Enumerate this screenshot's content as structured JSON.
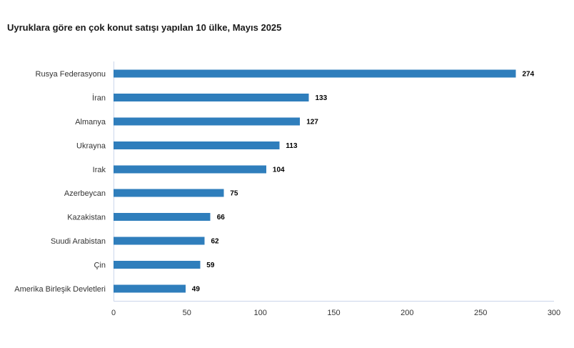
{
  "chart_data": {
    "type": "bar",
    "horizontal": true,
    "title": "Uyruklara göre en çok konut satışı yapılan 10 ülke, Mayıs 2025",
    "categories": [
      "Rusya Federasyonu",
      "İran",
      "Almanya",
      "Ukrayna",
      "Irak",
      "Azerbeycan",
      "Kazakistan",
      "Suudi Arabistan",
      "Çin",
      "Amerika Birleşik Devletleri"
    ],
    "values": [
      274,
      133,
      127,
      113,
      104,
      75,
      66,
      62,
      59,
      49
    ],
    "xlim": [
      0,
      300
    ],
    "xticks": [
      0,
      50,
      100,
      150,
      200,
      250,
      300
    ],
    "data_labels": true,
    "grid": false,
    "legend": false,
    "colors": {
      "bar": "#2f7ebc",
      "data_label": "#000000",
      "axis_line": "#ccd6eb"
    }
  }
}
